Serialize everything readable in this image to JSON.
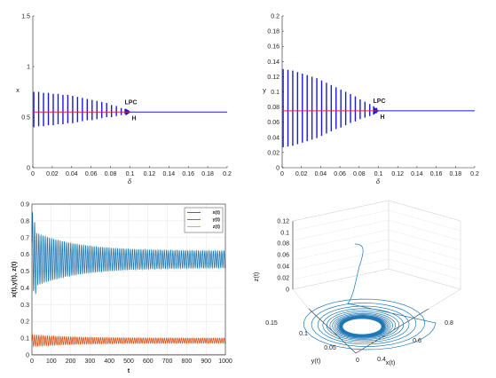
{
  "chart_data": [
    {
      "type": "line",
      "xlabel": "δ",
      "ylabel": "x",
      "xlim": [
        0,
        0.2
      ],
      "ylim": [
        0,
        1.5
      ],
      "x_ticks": [
        "0",
        "0.02",
        "0.04",
        "0.06",
        "0.08",
        "0.1",
        "0.12",
        "0.14",
        "0.16",
        "0.18",
        "0.2"
      ],
      "y_ticks": [
        "0",
        "0.5",
        "1",
        "1.5"
      ],
      "equilibrium": 0.55,
      "hopf_delta": 0.1,
      "oscillation_deltas": [
        0.001,
        0.006,
        0.011,
        0.016,
        0.021,
        0.026,
        0.031,
        0.036,
        0.041,
        0.046,
        0.051,
        0.056,
        0.061,
        0.066,
        0.071,
        0.076,
        0.081,
        0.086,
        0.091,
        0.095,
        0.098
      ],
      "oscillation_max": [
        0.75,
        0.75,
        0.74,
        0.74,
        0.73,
        0.73,
        0.72,
        0.72,
        0.71,
        0.7,
        0.69,
        0.68,
        0.67,
        0.66,
        0.65,
        0.64,
        0.62,
        0.61,
        0.59,
        0.58,
        0.57
      ],
      "oscillation_min": [
        0.4,
        0.41,
        0.41,
        0.42,
        0.42,
        0.43,
        0.43,
        0.44,
        0.44,
        0.45,
        0.46,
        0.47,
        0.47,
        0.48,
        0.49,
        0.5,
        0.5,
        0.51,
        0.52,
        0.53,
        0.54
      ],
      "annotations": {
        "lpc": "LPC",
        "hopf": "H"
      }
    },
    {
      "type": "line",
      "xlabel": "δ",
      "ylabel": "y",
      "xlim": [
        0,
        0.2
      ],
      "ylim": [
        0,
        0.2
      ],
      "x_ticks": [
        "0",
        "0.02",
        "0.04",
        "0.06",
        "0.08",
        "0.1",
        "0.12",
        "0.14",
        "0.16",
        "0.18",
        "0.2"
      ],
      "y_ticks": [
        "0",
        "0.02",
        "0.04",
        "0.06",
        "0.08",
        "0.1",
        "0.12",
        "0.14",
        "0.16",
        "0.18",
        "0.2"
      ],
      "equilibrium": 0.075,
      "hopf_delta": 0.1,
      "oscillation_deltas": [
        0.001,
        0.006,
        0.011,
        0.016,
        0.021,
        0.026,
        0.031,
        0.036,
        0.041,
        0.046,
        0.051,
        0.056,
        0.061,
        0.066,
        0.071,
        0.076,
        0.081,
        0.086,
        0.091,
        0.095,
        0.098
      ],
      "oscillation_max": [
        0.13,
        0.129,
        0.128,
        0.126,
        0.124,
        0.122,
        0.12,
        0.118,
        0.115,
        0.112,
        0.109,
        0.106,
        0.103,
        0.1,
        0.097,
        0.094,
        0.09,
        0.087,
        0.084,
        0.081,
        0.079
      ],
      "oscillation_min": [
        0.027,
        0.028,
        0.029,
        0.031,
        0.033,
        0.035,
        0.037,
        0.039,
        0.042,
        0.045,
        0.048,
        0.051,
        0.053,
        0.056,
        0.059,
        0.061,
        0.064,
        0.066,
        0.068,
        0.07,
        0.072
      ],
      "annotations": {
        "lpc": "LPC",
        "hopf": "H"
      }
    },
    {
      "type": "line",
      "xlabel": "t",
      "ylabel": "x(t),y(t), z(t)",
      "xlim": [
        0,
        1000
      ],
      "ylim": [
        0,
        0.9
      ],
      "x_ticks": [
        "0",
        "100",
        "200",
        "300",
        "400",
        "500",
        "600",
        "700",
        "800",
        "900",
        "1000"
      ],
      "y_ticks": [
        "0",
        "0.1",
        "0.2",
        "0.3",
        "0.4",
        "0.5",
        "0.6",
        "0.7",
        "0.8",
        "0.9"
      ],
      "grid": true,
      "legend_position": "top-right",
      "series": [
        {
          "name": "x(t)",
          "color": "#1f77b4",
          "center": 0.57,
          "amp_start": 0.17,
          "amp_end": 0.05,
          "period": 11
        },
        {
          "name": "y(t)",
          "color": "#d95319",
          "center": 0.085,
          "amp_start": 0.035,
          "amp_end": 0.015,
          "period": 11
        },
        {
          "name": "z(t)",
          "color": "#edb120",
          "center": 0.0,
          "amp_start": 0.0,
          "amp_end": 0.0,
          "period": 11
        }
      ]
    },
    {
      "type": "line",
      "xlabel": "x(t)",
      "ylabel": "y(t)",
      "zlabel": "z(t)",
      "x_ticks": [
        "0.4",
        "0.6",
        "0.8"
      ],
      "y_ticks": [
        "0",
        "0.05",
        "0.1",
        "0.15"
      ],
      "z_ticks": [
        "0",
        "0.02",
        "0.04",
        "0.06",
        "0.08",
        "0.1",
        "0.12"
      ],
      "line_color": "#1f77b4",
      "grid": true
    }
  ]
}
